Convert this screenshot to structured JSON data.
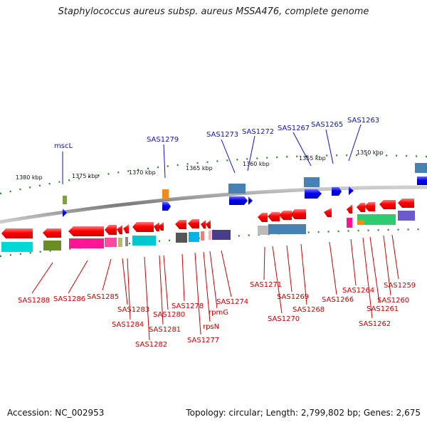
{
  "title": "Staphylococcus aureus subsp. aureus MSSA476, complete genome",
  "footer": {
    "accession": "Accession: NC_002953",
    "summary": "Topology: circular; Length: 2,799,802 bp; Genes: 2,675"
  },
  "scale_ticks": [
    "1380 kbp",
    "1375 kbp",
    "1370 kbp",
    "1365 kbp",
    "1360 kbp",
    "1355 kbp",
    "1350 kbp"
  ],
  "top_labels": [
    "mscL",
    "SAS1279",
    "SAS1273",
    "SAS1272",
    "SAS1267",
    "SAS1265",
    "SAS1263"
  ],
  "bottom_labels": [
    "SAS1288",
    "SAS1286",
    "SAS1285",
    "SAS1283",
    "SAS1284",
    "SAS1280",
    "SAS1281",
    "SAS1282",
    "SAS1278",
    "SAS1277",
    "rpsN",
    "rpmG",
    "SAS1274",
    "SAS1271",
    "SAS1270",
    "SAS1269",
    "SAS1268",
    "SAS1266",
    "SAS1264",
    "SAS1262",
    "SAS1261",
    "SAS1260",
    "SAS1259"
  ],
  "colors": {
    "gene_forward": "#0000ee",
    "gene_reverse": "#ff0000",
    "label_top": "#1010cc",
    "label_bottom": "#cc0000",
    "backbone": "#888888",
    "tick": "#2e8b2e"
  }
}
